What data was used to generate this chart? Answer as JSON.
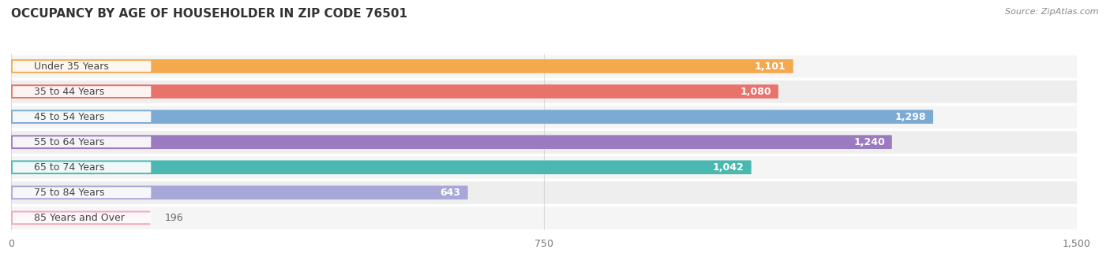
{
  "title": "OCCUPANCY BY AGE OF HOUSEHOLDER IN ZIP CODE 76501",
  "source": "Source: ZipAtlas.com",
  "categories": [
    "Under 35 Years",
    "35 to 44 Years",
    "45 to 54 Years",
    "55 to 64 Years",
    "65 to 74 Years",
    "75 to 84 Years",
    "85 Years and Over"
  ],
  "values": [
    1101,
    1080,
    1298,
    1240,
    1042,
    643,
    196
  ],
  "bar_colors": [
    "#f5a94e",
    "#e8736b",
    "#7baad4",
    "#9b7bbf",
    "#4ab8b0",
    "#a8a8d8",
    "#f4a8b8"
  ],
  "xlim": [
    0,
    1500
  ],
  "xticks": [
    0,
    750,
    1500
  ],
  "title_fontsize": 11,
  "label_fontsize": 9,
  "value_fontsize": 9,
  "background_color": "#ffffff",
  "bar_height": 0.55,
  "row_bg_even": "#f5f5f5",
  "row_bg_odd": "#eeeeee",
  "separator_color": "#ffffff"
}
